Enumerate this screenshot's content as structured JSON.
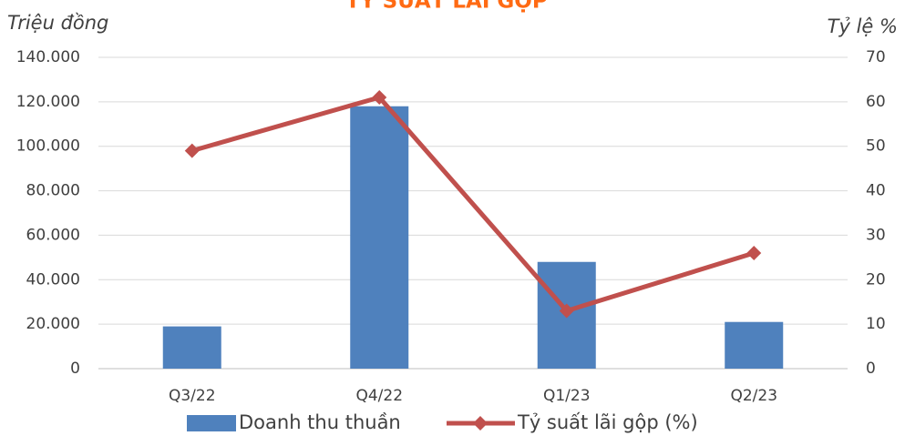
{
  "chart_data": {
    "type": "bar",
    "title": "TỶ SUẤT LÃI GỘP",
    "ylabel": "Triệu đồng",
    "y2label": "Tỷ lệ %",
    "categories": [
      "Q3/22",
      "Q4/22",
      "Q1/23",
      "Q2/23"
    ],
    "series": [
      {
        "name": "Doanh thu thuần",
        "color": "#4f81bd",
        "values": [
          19000,
          118000,
          48000,
          21000
        ]
      },
      {
        "name": "Tỷ suất lãi gộp (%)",
        "color": "#c0504d",
        "type": "line",
        "axis": "y2",
        "values": [
          49,
          61,
          13,
          26
        ]
      }
    ],
    "ylim": [
      0,
      140000
    ],
    "yticks": [
      0,
      {
        "value": 20000,
        "label": "20.000"
      },
      {
        "value": 40000,
        "label": "40.000"
      },
      {
        "value": 60000,
        "label": "60.000"
      },
      {
        "value": 80000,
        "label": "80.000"
      },
      {
        "value": 100000,
        "label": "100.000"
      },
      {
        "value": 120000,
        "label": "120.000"
      },
      {
        "value": 140000,
        "label": "140.000"
      }
    ],
    "y2lim": [
      0,
      70
    ],
    "y2ticks": [
      0,
      10,
      20,
      30,
      40,
      50,
      60,
      70
    ],
    "grid": true,
    "legend": "bottom"
  }
}
